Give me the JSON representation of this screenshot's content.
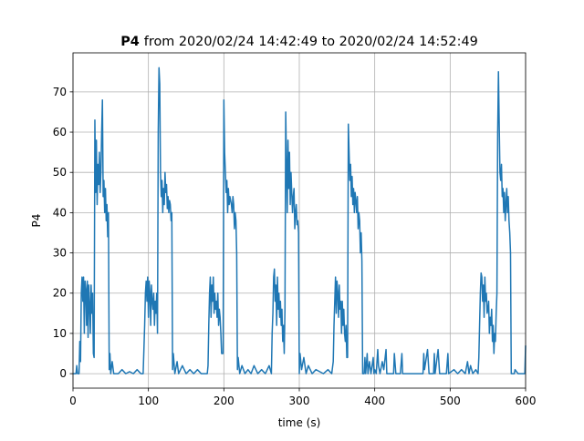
{
  "chart_data": {
    "type": "line",
    "title_var": "P4",
    "title": "from 2020/02/24 14:42:49 to 2020/02/24 14:52:49",
    "x_label": "time (s)",
    "y_label": "P4",
    "color": "#1f77b4",
    "grid": true,
    "xlim": [
      0,
      600
    ],
    "ylim": [
      -3.6,
      79.7
    ],
    "xticks": [
      0,
      100,
      200,
      300,
      400,
      500,
      600
    ],
    "yticks": [
      0,
      10,
      20,
      30,
      40,
      50,
      60,
      70
    ],
    "x": [
      0,
      4,
      5,
      6,
      8,
      9,
      10,
      11,
      12,
      13,
      14,
      15,
      16,
      17,
      18,
      19,
      20,
      21,
      22,
      23,
      24,
      25,
      26,
      27,
      28,
      29,
      30,
      31,
      32,
      33,
      34,
      35,
      36,
      37,
      38,
      39,
      40,
      41,
      42,
      43,
      44,
      45,
      46,
      47,
      48,
      49,
      50,
      52,
      54,
      60,
      65,
      70,
      75,
      80,
      85,
      90,
      93,
      94,
      95,
      96,
      97,
      98,
      99,
      100,
      101,
      102,
      103,
      104,
      105,
      106,
      107,
      108,
      109,
      110,
      111,
      112,
      113,
      114,
      115,
      116,
      117,
      118,
      119,
      120,
      121,
      122,
      123,
      124,
      125,
      126,
      127,
      128,
      129,
      130,
      131,
      132,
      133,
      135,
      138,
      140,
      145,
      150,
      155,
      160,
      165,
      170,
      178,
      179,
      180,
      181,
      182,
      183,
      184,
      185,
      186,
      187,
      188,
      189,
      190,
      191,
      192,
      193,
      194,
      195,
      196,
      197,
      199,
      200,
      201,
      202,
      203,
      204,
      205,
      206,
      207,
      208,
      209,
      210,
      211,
      212,
      213,
      214,
      215,
      216,
      217,
      218,
      219,
      221,
      224,
      228,
      232,
      236,
      240,
      245,
      250,
      255,
      260,
      263,
      264,
      265,
      266,
      267,
      268,
      269,
      270,
      271,
      272,
      273,
      274,
      275,
      276,
      277,
      278,
      279,
      280,
      281,
      282,
      283,
      284,
      285,
      286,
      287,
      288,
      289,
      290,
      291,
      292,
      293,
      294,
      295,
      296,
      297,
      298,
      299,
      300,
      301,
      303,
      306,
      309,
      312,
      317,
      322,
      327,
      332,
      338,
      343,
      345,
      346,
      347,
      348,
      349,
      350,
      351,
      352,
      353,
      354,
      355,
      356,
      357,
      358,
      359,
      360,
      361,
      362,
      363,
      364,
      365,
      366,
      367,
      368,
      369,
      370,
      371,
      372,
      373,
      374,
      375,
      376,
      377,
      378,
      379,
      380,
      381,
      382,
      383,
      384,
      386,
      387,
      388,
      390,
      391,
      393,
      395,
      398,
      399,
      400,
      402,
      404,
      405,
      407,
      410,
      412,
      415,
      416,
      425,
      426,
      428,
      434,
      436,
      437,
      464,
      465,
      466,
      470,
      472,
      478,
      479,
      480,
      484,
      486,
      495,
      497,
      498,
      505,
      510,
      515,
      520,
      523,
      525,
      527,
      530,
      534,
      537,
      538,
      539,
      540,
      541,
      542,
      543,
      544,
      545,
      546,
      547,
      548,
      549,
      550,
      551,
      552,
      553,
      554,
      555,
      556,
      557,
      558,
      559,
      560,
      561,
      562,
      563,
      564,
      565,
      566,
      567,
      568,
      569,
      570,
      571,
      572,
      573,
      574,
      575,
      576,
      577,
      578,
      579,
      580,
      581,
      585,
      586,
      590,
      599,
      600
    ],
    "values": [
      0,
      0,
      2,
      0,
      0,
      8,
      3,
      20,
      24,
      18,
      24,
      10,
      23,
      21,
      12,
      23,
      9,
      22,
      17,
      10,
      22,
      15,
      20,
      5,
      4,
      63,
      45,
      58,
      42,
      52,
      47,
      55,
      45,
      50,
      60,
      68,
      44,
      48,
      40,
      46,
      38,
      42,
      34,
      40,
      1,
      5,
      0,
      3,
      0,
      0,
      1,
      0,
      0.5,
      0,
      1,
      0,
      0,
      6,
      12,
      20,
      23,
      18,
      24,
      14,
      23,
      20,
      12,
      22,
      18,
      16,
      20,
      12,
      18,
      15,
      20,
      10,
      60,
      76,
      72,
      50,
      44,
      48,
      40,
      46,
      42,
      50,
      45,
      47,
      41,
      44,
      40,
      43,
      42,
      38,
      40,
      1,
      5,
      0,
      3,
      0,
      2,
      0,
      1,
      0,
      1,
      0,
      0,
      2,
      12,
      20,
      24,
      14,
      22,
      18,
      24,
      15,
      20,
      16,
      18,
      14,
      20,
      12,
      16,
      14,
      10,
      5,
      5,
      68,
      55,
      50,
      45,
      48,
      40,
      46,
      42,
      44,
      43,
      42,
      40,
      44,
      42,
      36,
      40,
      38,
      30,
      1,
      4,
      0,
      2,
      0,
      1,
      0,
      2,
      0,
      1,
      0,
      2,
      0,
      10,
      15,
      24,
      26,
      18,
      22,
      12,
      24,
      16,
      20,
      14,
      18,
      12,
      16,
      8,
      12,
      5,
      16,
      65,
      52,
      40,
      58,
      46,
      55,
      42,
      50,
      45,
      40,
      44,
      46,
      36,
      40,
      42,
      37,
      38,
      35,
      0,
      5,
      1,
      4,
      0,
      2,
      0,
      1,
      0.5,
      0,
      1,
      0,
      3,
      12,
      18,
      24,
      15,
      23,
      20,
      14,
      22,
      16,
      18,
      10,
      18,
      12,
      16,
      10,
      8,
      12,
      4,
      4,
      62,
      55,
      48,
      52,
      44,
      49,
      42,
      46,
      40,
      45,
      43,
      40,
      44,
      36,
      40,
      38,
      30,
      35,
      28,
      0,
      0,
      4,
      0,
      5,
      0,
      3,
      0,
      4,
      0,
      1,
      0,
      6,
      2,
      0,
      3,
      1,
      6,
      0,
      0,
      5,
      0,
      0,
      5,
      0,
      0,
      5,
      1,
      6,
      0,
      0,
      5,
      0,
      6,
      0,
      0,
      5,
      0,
      1,
      0,
      1,
      0,
      3,
      0,
      2,
      0,
      1,
      0,
      4,
      12,
      20,
      25,
      24,
      18,
      22,
      14,
      24,
      18,
      20,
      15,
      16,
      18,
      10,
      14,
      12,
      16,
      8,
      12,
      5,
      10,
      8,
      15,
      20,
      60,
      75,
      62,
      50,
      48,
      52,
      44,
      46,
      40,
      45,
      38,
      42,
      46,
      40,
      44,
      38,
      35,
      30,
      0,
      0,
      1,
      0,
      0,
      7
    ]
  }
}
